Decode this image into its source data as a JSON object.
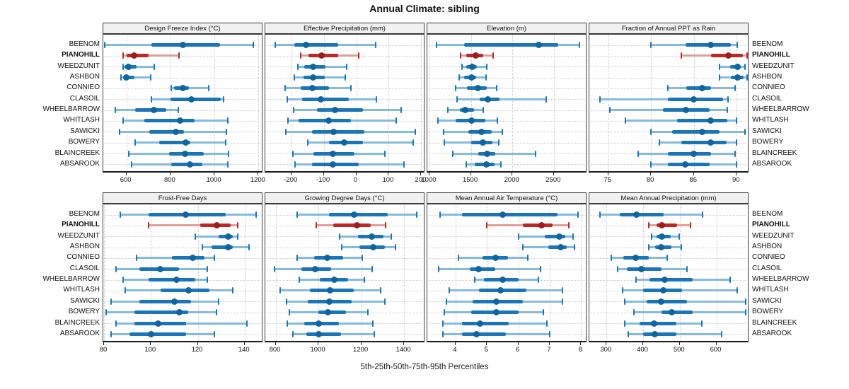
{
  "title": "Annual Climate: sibling",
  "caption": "5th-25th-50th-75th-95th Percentiles",
  "sites": [
    "BEENOM",
    "PIANOHILL",
    "WEEDZUNIT",
    "ASHBON",
    "CONNIEO",
    "CLASOIL",
    "WHEELBARROW",
    "WHITLASH",
    "SAWICKI",
    "BOWERY",
    "BLAINCREEK",
    "ABSAROOK"
  ],
  "highlight_site": "PIANOHILL",
  "colors": {
    "blue": "#1b76b8",
    "blue_light": "#85bbdd",
    "blue_dot": "#10659f",
    "red": "#bf2626",
    "red_light": "#dca09c",
    "red_dot": "#9f1c1c",
    "grid": "#c9c9c9",
    "panel_border": "#3a3a3a",
    "header_bg": "#f1f1f1"
  },
  "chart_data": {
    "type": "dot-interval percentile chart (5-25-50-75-95)",
    "percentiles": [
      5,
      25,
      50,
      75,
      95
    ],
    "legend_note": "thin line = 5th-95th, thick line = 25th-75th, dot = median; PIANOHILL highlighted red",
    "sites": [
      "BEENOM",
      "PIANOHILL",
      "WEEDZUNIT",
      "ASHBON",
      "CONNIEO",
      "CLASOIL",
      "WHEELBARROW",
      "WHITLASH",
      "SAWICKI",
      "BOWERY",
      "BLAINCREEK",
      "ABSAROOK"
    ],
    "panels": [
      {
        "title": "Design Freeze Index (°C)",
        "grid_row": 0,
        "grid_col": 0,
        "xlim": [
          495,
          1215
        ],
        "ticks": [
          600,
          800,
          1000,
          1200
        ],
        "values": [
          [
            500,
            715,
            855,
            1025,
            1175
          ],
          [
            585,
            600,
            635,
            700,
            840
          ],
          [
            585,
            590,
            610,
            645,
            725
          ],
          [
            575,
            585,
            600,
            635,
            710
          ],
          [
            805,
            815,
            855,
            885,
            975
          ],
          [
            715,
            800,
            895,
            1030,
            1040
          ],
          [
            550,
            640,
            725,
            780,
            835
          ],
          [
            585,
            680,
            845,
            910,
            1060
          ],
          [
            570,
            705,
            825,
            860,
            1055
          ],
          [
            640,
            750,
            870,
            890,
            1050
          ],
          [
            610,
            795,
            865,
            950,
            1065
          ],
          [
            625,
            805,
            890,
            945,
            1060
          ]
        ]
      },
      {
        "title": "Effective Precipitation (mm)",
        "grid_row": 0,
        "grid_col": 1,
        "xlim": [
          -280,
          208
        ],
        "ticks": [
          -200,
          -100,
          0,
          100,
          200
        ],
        "values": [
          [
            -250,
            -190,
            -155,
            -55,
            60
          ],
          [
            -170,
            -148,
            -107,
            -55,
            8
          ],
          [
            -180,
            -160,
            -132,
            -95,
            -30
          ],
          [
            -190,
            -163,
            -134,
            -96,
            -33
          ],
          [
            -218,
            -170,
            -136,
            -84,
            -17
          ],
          [
            -212,
            -167,
            -109,
            -23,
            63
          ],
          [
            -193,
            -120,
            -65,
            21,
            138
          ],
          [
            -210,
            -178,
            -84,
            -17,
            124
          ],
          [
            -216,
            -136,
            -69,
            25,
            182
          ],
          [
            -149,
            -84,
            -38,
            21,
            176
          ],
          [
            -195,
            -132,
            -71,
            -6,
            88
          ],
          [
            -189,
            -136,
            -71,
            8,
            147
          ]
        ]
      },
      {
        "title": "Elevation (m)",
        "grid_row": 0,
        "grid_col": 2,
        "xlim": [
          975,
          2885
        ],
        "ticks": [
          1000,
          1500,
          2000,
          2500
        ],
        "values": [
          [
            1090,
            1420,
            2315,
            2555,
            2810
          ],
          [
            1380,
            1445,
            1555,
            1645,
            1770
          ],
          [
            1395,
            1445,
            1520,
            1570,
            1695
          ],
          [
            1355,
            1420,
            1505,
            1560,
            1685
          ],
          [
            1320,
            1455,
            1585,
            1690,
            1810
          ],
          [
            1330,
            1610,
            1700,
            1845,
            2405
          ],
          [
            1225,
            1370,
            1430,
            1535,
            1650
          ],
          [
            1100,
            1320,
            1505,
            1670,
            1820
          ],
          [
            1175,
            1470,
            1625,
            1750,
            1875
          ],
          [
            1180,
            1505,
            1645,
            1760,
            1835
          ],
          [
            1280,
            1585,
            1695,
            1795,
            2280
          ],
          [
            1440,
            1545,
            1685,
            1785,
            1865
          ]
        ]
      },
      {
        "title": "Fraction of Annual PPT as Rain",
        "grid_row": 0,
        "grid_col": 3,
        "xlim": [
          72.8,
          91.3
        ],
        "ticks": [
          75,
          80,
          85,
          90
        ],
        "values": [
          [
            80,
            84,
            87,
            89.3,
            90.1
          ],
          [
            83.5,
            87,
            89,
            90.7,
            91.2
          ],
          [
            88,
            89.2,
            90.1,
            90.5,
            91
          ],
          [
            88,
            89.3,
            90.1,
            90.8,
            91.2
          ],
          [
            82,
            84.1,
            86,
            87,
            89.8
          ],
          [
            74,
            82,
            85,
            88.4,
            89
          ],
          [
            75.2,
            81.4,
            84.1,
            86.8,
            88.9
          ],
          [
            77,
            83,
            87,
            88.9,
            90
          ],
          [
            80,
            82.5,
            86,
            88,
            91
          ],
          [
            81,
            83.5,
            87,
            88.8,
            90
          ],
          [
            78.5,
            82,
            85,
            87,
            89.8
          ],
          [
            80,
            82,
            84,
            86.8,
            90
          ]
        ]
      },
      {
        "title": "Frost-Free Days",
        "grid_row": 1,
        "grid_col": 0,
        "xlim": [
          79.7,
          147.3
        ],
        "ticks": [
          80,
          100,
          120,
          140
        ],
        "values": [
          [
            87,
            99,
            115,
            132,
            145
          ],
          [
            99,
            121,
            128,
            134,
            137
          ],
          [
            119,
            129,
            133,
            135,
            137
          ],
          [
            122,
            126,
            133,
            135,
            142
          ],
          [
            94,
            109,
            118,
            123,
            127
          ],
          [
            85,
            95,
            104,
            112,
            124
          ],
          [
            88,
            99,
            111,
            119,
            124
          ],
          [
            89,
            104,
            116,
            125,
            135
          ],
          [
            83,
            95,
            110,
            117,
            129
          ],
          [
            81,
            93,
            112,
            116,
            128
          ],
          [
            85,
            93,
            103,
            115,
            141
          ],
          [
            83,
            91,
            100,
            115,
            127
          ]
        ]
      },
      {
        "title": "Growing Degree Days (°C)",
        "grid_row": 1,
        "grid_col": 1,
        "xlim": [
          752,
          1492
        ],
        "ticks": [
          800,
          1000,
          1200,
          1400
        ],
        "values": [
          [
            900,
            1050,
            1165,
            1325,
            1460
          ],
          [
            990,
            1070,
            1180,
            1245,
            1315
          ],
          [
            1100,
            1185,
            1250,
            1305,
            1340
          ],
          [
            1110,
            1190,
            1255,
            1310,
            1360
          ],
          [
            900,
            980,
            1040,
            1115,
            1205
          ],
          [
            795,
            920,
            985,
            1060,
            1250
          ],
          [
            910,
            1005,
            1075,
            1140,
            1215
          ],
          [
            820,
            960,
            1055,
            1165,
            1290
          ],
          [
            850,
            950,
            1050,
            1155,
            1310
          ],
          [
            865,
            1000,
            1045,
            1130,
            1230
          ],
          [
            855,
            935,
            1000,
            1095,
            1255
          ],
          [
            880,
            945,
            1000,
            1105,
            1260
          ]
        ]
      },
      {
        "title": "Mean Annual Air Temperature (°C)",
        "grid_row": 1,
        "grid_col": 2,
        "xlim": [
          3.1,
          8.15
        ],
        "ticks": [
          4,
          5,
          6,
          7,
          8
        ],
        "values": [
          [
            3.5,
            4.2,
            5.5,
            7.25,
            7.9
          ],
          [
            5.0,
            6.15,
            6.75,
            7.1,
            7.6
          ],
          [
            6.0,
            6.85,
            7.3,
            7.5,
            7.75
          ],
          [
            6.15,
            6.95,
            7.35,
            7.55,
            7.8
          ],
          [
            4.1,
            4.85,
            5.27,
            5.67,
            6.3
          ],
          [
            3.45,
            4.45,
            4.73,
            5.27,
            6.7
          ],
          [
            4.6,
            4.9,
            5.5,
            6.0,
            6.65
          ],
          [
            3.8,
            4.75,
            5.43,
            6.25,
            7.4
          ],
          [
            3.7,
            4.55,
            5.3,
            6.15,
            7.4
          ],
          [
            3.65,
            4.5,
            5.3,
            6.0,
            6.8
          ],
          [
            3.6,
            4.2,
            4.78,
            5.7,
            6.9
          ],
          [
            3.6,
            4.2,
            4.67,
            5.6,
            7.0
          ]
        ]
      },
      {
        "title": "Mean Annual Precipitation (mm)",
        "grid_row": 1,
        "grid_col": 3,
        "xlim": [
          253,
          686
        ],
        "ticks": [
          300,
          400,
          500,
          600
        ],
        "values": [
          [
            282,
            336,
            382,
            456,
            563
          ],
          [
            415,
            437,
            452,
            493,
            530
          ],
          [
            423,
            437,
            452,
            475,
            499
          ],
          [
            415,
            433,
            450,
            478,
            505
          ],
          [
            313,
            345,
            380,
            415,
            465
          ],
          [
            330,
            355,
            395,
            450,
            520
          ],
          [
            380,
            418,
            458,
            535,
            637
          ],
          [
            343,
            400,
            455,
            507,
            657
          ],
          [
            350,
            410,
            450,
            520,
            680
          ],
          [
            375,
            450,
            478,
            535,
            680
          ],
          [
            350,
            390,
            430,
            490,
            560
          ],
          [
            360,
            400,
            432,
            490,
            615
          ]
        ]
      }
    ]
  }
}
